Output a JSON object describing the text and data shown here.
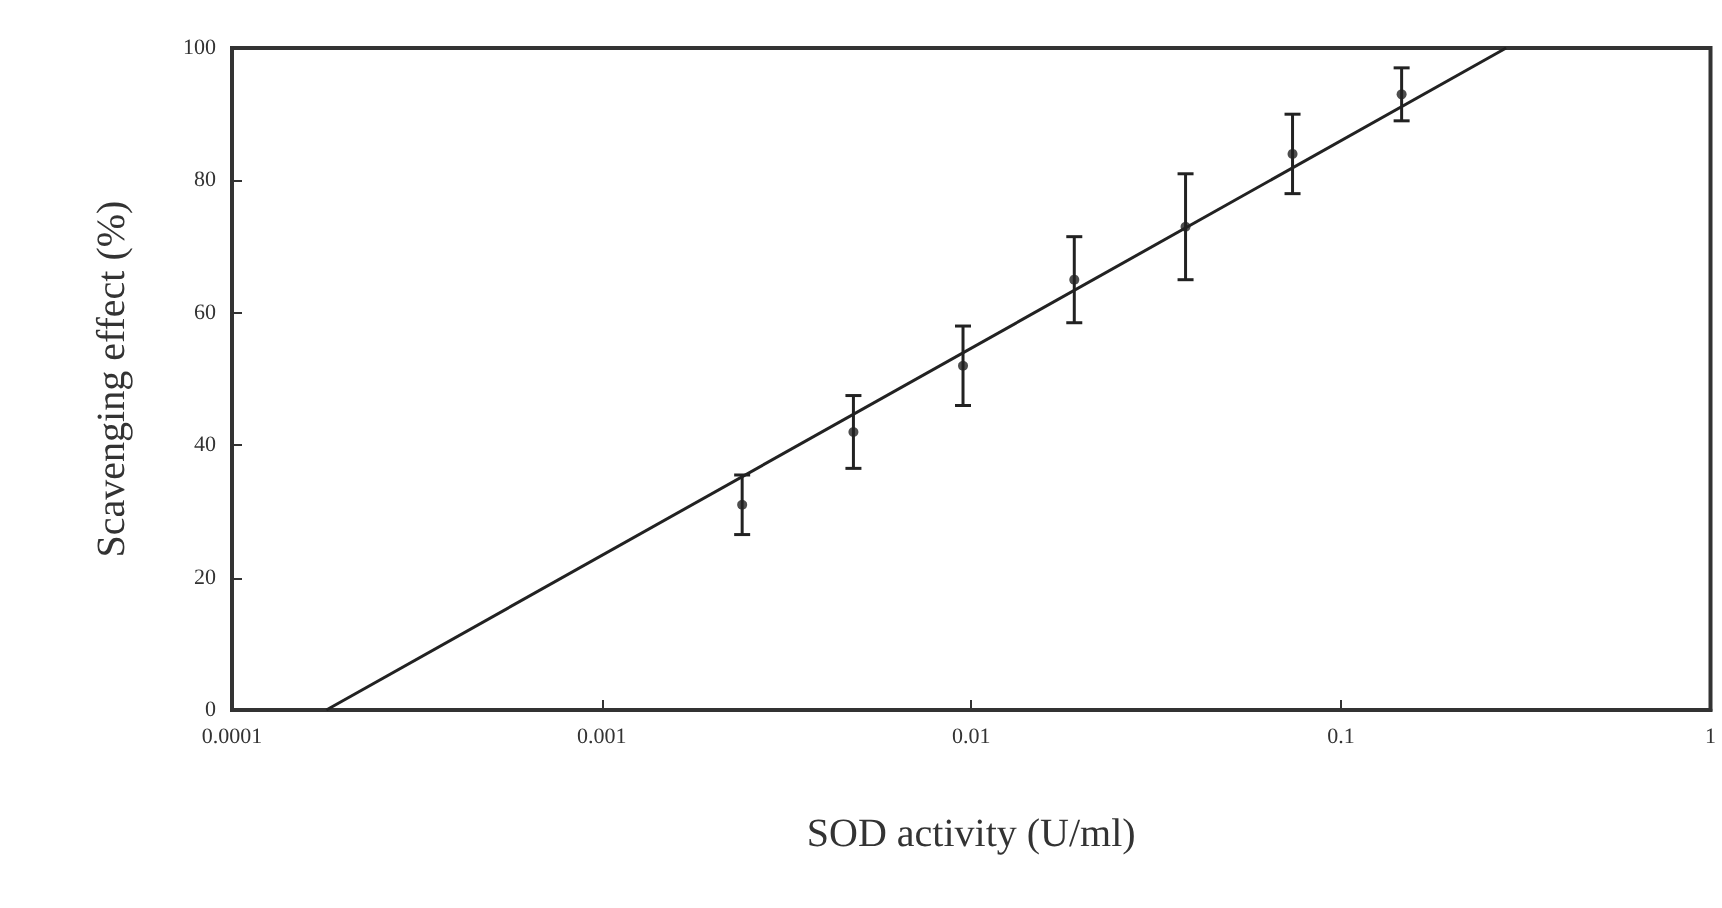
{
  "chart_data": {
    "type": "scatter",
    "xlabel": "SOD activity (U/ml)",
    "ylabel": "Scavenging effect (%)",
    "log": "x",
    "xlim": [
      0.0001,
      1
    ],
    "xticks": [
      0.0001,
      0.001,
      0.01,
      0.1,
      1
    ],
    "ylim": [
      0,
      100
    ],
    "yticks": [
      0,
      20,
      40,
      60,
      80,
      100
    ],
    "grid": false,
    "series": [
      {
        "marker": "circle",
        "color": "#222222",
        "x": [
          0.0024,
          0.0048,
          0.0095,
          0.019,
          0.038,
          0.074,
          0.146
        ],
        "values": [
          31,
          42,
          52,
          65,
          73,
          84,
          93
        ],
        "errors": [
          4.5,
          5.5,
          6,
          6.5,
          8,
          6,
          4
        ]
      },
      {
        "type": "line",
        "marker": "none",
        "color": "#222222",
        "x": [
          0.00018,
          0.28
        ],
        "values": [
          0,
          100
        ]
      }
    ]
  }
}
